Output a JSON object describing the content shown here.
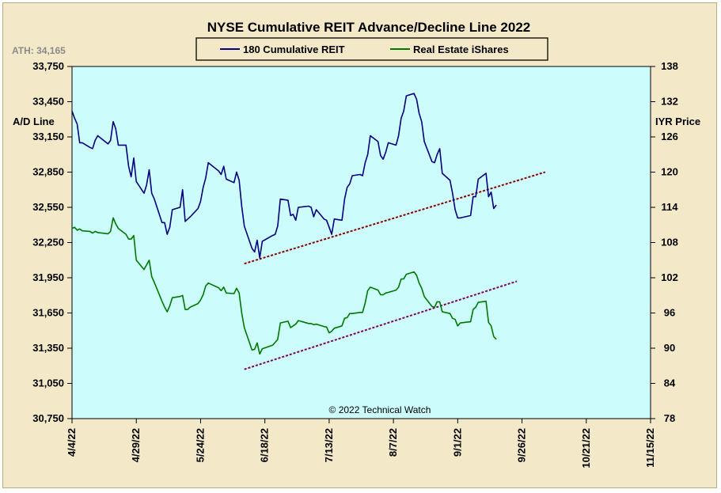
{
  "chart_data": {
    "type": "line",
    "title": "NYSE Cumulative  REIT Advance/Decline  Line 2022",
    "ath_label": "ATH: 34,165",
    "copyright": "© 2022 Technical  Watch",
    "left_axis": {
      "label": "A/D Line",
      "ticks": [
        "33,750",
        "33,450",
        "33,150",
        "32,850",
        "32,550",
        "32,250",
        "31,950",
        "31,650",
        "31,350",
        "31,050",
        "30,750"
      ],
      "range": [
        30750,
        33750
      ]
    },
    "right_axis": {
      "label": "IYR Price",
      "ticks": [
        "138",
        "132",
        "126",
        "120",
        "114",
        "108",
        "102",
        "96",
        "90",
        "84",
        "78"
      ],
      "range": [
        78,
        138
      ]
    },
    "x_axis": {
      "ticks": [
        "4/4/22",
        "4/29/22",
        "5/24/22",
        "6/18/22",
        "7/13/22",
        "8/7/22",
        "9/1/22",
        "9/26/22",
        "10/21/22",
        "11/15/22"
      ],
      "start": "4/4/22",
      "end": "11/15/22"
    },
    "legend": {
      "position": "top-center"
    },
    "colors": {
      "reit": "#000080",
      "iyr": "#007800",
      "trend_reit": "#8b0000",
      "trend_iyr": "#800060",
      "plot_bg": "#ccfcfc",
      "frame_bg": "#f3e9c9"
    },
    "series": [
      {
        "name": "180 Cumulative REIT",
        "axis": "left",
        "color": "#000080",
        "points": [
          [
            "4/4/22",
            33370
          ],
          [
            "4/5/22",
            33310
          ],
          [
            "4/6/22",
            33260
          ],
          [
            "4/7/22",
            33100
          ],
          [
            "4/8/22",
            33100
          ],
          [
            "4/11/22",
            33060
          ],
          [
            "4/12/22",
            33050
          ],
          [
            "4/13/22",
            33120
          ],
          [
            "4/14/22",
            33160
          ],
          [
            "4/18/22",
            33090
          ],
          [
            "4/19/22",
            33120
          ],
          [
            "4/20/22",
            33280
          ],
          [
            "4/21/22",
            33220
          ],
          [
            "4/22/22",
            33080
          ],
          [
            "4/25/22",
            33080
          ],
          [
            "4/26/22",
            32900
          ],
          [
            "4/27/22",
            32810
          ],
          [
            "4/28/22",
            32970
          ],
          [
            "4/29/22",
            32770
          ],
          [
            "5/2/22",
            32670
          ],
          [
            "5/3/22",
            32740
          ],
          [
            "5/4/22",
            32870
          ],
          [
            "5/5/22",
            32670
          ],
          [
            "5/6/22",
            32620
          ],
          [
            "5/9/22",
            32420
          ],
          [
            "5/10/22",
            32420
          ],
          [
            "5/11/22",
            32320
          ],
          [
            "5/12/22",
            32380
          ],
          [
            "5/13/22",
            32530
          ],
          [
            "5/16/22",
            32550
          ],
          [
            "5/17/22",
            32700
          ],
          [
            "5/18/22",
            32430
          ],
          [
            "5/19/22",
            32450
          ],
          [
            "5/20/22",
            32470
          ],
          [
            "5/23/22",
            32540
          ],
          [
            "5/24/22",
            32600
          ],
          [
            "5/25/22",
            32720
          ],
          [
            "5/26/22",
            32800
          ],
          [
            "5/27/22",
            32930
          ],
          [
            "5/31/22",
            32860
          ],
          [
            "6/1/22",
            32830
          ],
          [
            "6/2/22",
            32900
          ],
          [
            "6/3/22",
            32790
          ],
          [
            "6/6/22",
            32760
          ],
          [
            "6/7/22",
            32850
          ],
          [
            "6/8/22",
            32780
          ],
          [
            "6/9/22",
            32560
          ],
          [
            "6/10/22",
            32390
          ],
          [
            "6/13/22",
            32200
          ],
          [
            "6/14/22",
            32170
          ],
          [
            "6/15/22",
            32270
          ],
          [
            "6/16/22",
            32120
          ],
          [
            "6/17/22",
            32260
          ],
          [
            "6/21/22",
            32310
          ],
          [
            "6/22/22",
            32320
          ],
          [
            "6/23/22",
            32390
          ],
          [
            "6/24/22",
            32620
          ],
          [
            "6/27/22",
            32610
          ],
          [
            "6/28/22",
            32480
          ],
          [
            "6/29/22",
            32490
          ],
          [
            "6/30/22",
            32440
          ],
          [
            "7/1/22",
            32550
          ],
          [
            "7/5/22",
            32560
          ],
          [
            "7/6/22",
            32550
          ],
          [
            "7/7/22",
            32470
          ],
          [
            "7/8/22",
            32530
          ],
          [
            "7/11/22",
            32450
          ],
          [
            "7/12/22",
            32440
          ],
          [
            "7/13/22",
            32380
          ],
          [
            "7/14/22",
            32320
          ],
          [
            "7/15/22",
            32450
          ],
          [
            "7/18/22",
            32440
          ],
          [
            "7/19/22",
            32620
          ],
          [
            "7/20/22",
            32720
          ],
          [
            "7/21/22",
            32750
          ],
          [
            "7/22/22",
            32820
          ],
          [
            "7/25/22",
            32830
          ],
          [
            "7/26/22",
            32820
          ],
          [
            "7/27/22",
            32930
          ],
          [
            "7/28/22",
            33000
          ],
          [
            "7/29/22",
            33160
          ],
          [
            "8/1/22",
            33110
          ],
          [
            "8/2/22",
            32990
          ],
          [
            "8/3/22",
            32960
          ],
          [
            "8/4/22",
            33020
          ],
          [
            "8/5/22",
            33100
          ],
          [
            "8/8/22",
            33080
          ],
          [
            "8/9/22",
            33160
          ],
          [
            "8/10/22",
            33310
          ],
          [
            "8/11/22",
            33370
          ],
          [
            "8/12/22",
            33500
          ],
          [
            "8/15/22",
            33520
          ],
          [
            "8/16/22",
            33470
          ],
          [
            "8/17/22",
            33350
          ],
          [
            "8/18/22",
            33280
          ],
          [
            "8/19/22",
            33110
          ],
          [
            "8/22/22",
            32940
          ],
          [
            "8/23/22",
            32930
          ],
          [
            "8/24/22",
            33000
          ],
          [
            "8/25/22",
            33050
          ],
          [
            "8/26/22",
            32840
          ],
          [
            "8/29/22",
            32780
          ],
          [
            "8/30/22",
            32670
          ],
          [
            "8/31/22",
            32530
          ],
          [
            "9/1/22",
            32460
          ],
          [
            "9/2/22",
            32460
          ],
          [
            "9/6/22",
            32480
          ],
          [
            "9/7/22",
            32640
          ],
          [
            "9/8/22",
            32640
          ],
          [
            "9/9/22",
            32790
          ],
          [
            "9/12/22",
            32840
          ],
          [
            "9/13/22",
            32640
          ],
          [
            "9/14/22",
            32680
          ],
          [
            "9/15/22",
            32540
          ],
          [
            "9/16/22",
            32570
          ]
        ]
      },
      {
        "name": "Real Estate iShares",
        "axis": "right",
        "color": "#007800",
        "points": [
          [
            "4/4/22",
            110.4
          ],
          [
            "4/5/22",
            110.6
          ],
          [
            "4/6/22",
            110.1
          ],
          [
            "4/7/22",
            110.3
          ],
          [
            "4/8/22",
            110.0
          ],
          [
            "4/11/22",
            109.9
          ],
          [
            "4/12/22",
            109.6
          ],
          [
            "4/13/22",
            109.9
          ],
          [
            "4/14/22",
            109.7
          ],
          [
            "4/18/22",
            109.5
          ],
          [
            "4/19/22",
            109.9
          ],
          [
            "4/20/22",
            112.2
          ],
          [
            "4/21/22",
            111.2
          ],
          [
            "4/22/22",
            110.4
          ],
          [
            "4/25/22",
            109.4
          ],
          [
            "4/26/22",
            108.6
          ],
          [
            "4/27/22",
            108.6
          ],
          [
            "4/28/22",
            109.2
          ],
          [
            "4/29/22",
            105.0
          ],
          [
            "5/2/22",
            103.4
          ],
          [
            "5/3/22",
            104.2
          ],
          [
            "5/4/22",
            105.0
          ],
          [
            "5/5/22",
            102.2
          ],
          [
            "5/6/22",
            101.2
          ],
          [
            "5/9/22",
            98.0
          ],
          [
            "5/10/22",
            97.0
          ],
          [
            "5/11/22",
            96.2
          ],
          [
            "5/12/22",
            97.2
          ],
          [
            "5/13/22",
            98.6
          ],
          [
            "5/16/22",
            98.8
          ],
          [
            "5/17/22",
            99.0
          ],
          [
            "5/18/22",
            96.6
          ],
          [
            "5/19/22",
            96.6
          ],
          [
            "5/20/22",
            97.0
          ],
          [
            "5/23/22",
            97.6
          ],
          [
            "5/24/22",
            98.2
          ],
          [
            "5/25/22",
            99.1
          ],
          [
            "5/26/22",
            100.6
          ],
          [
            "5/27/22",
            101.1
          ],
          [
            "5/31/22",
            100.3
          ],
          [
            "6/1/22",
            99.8
          ],
          [
            "6/2/22",
            100.4
          ],
          [
            "6/3/22",
            99.4
          ],
          [
            "6/6/22",
            99.3
          ],
          [
            "6/7/22",
            100.2
          ],
          [
            "6/8/22",
            99.4
          ],
          [
            "6/9/22",
            96.0
          ],
          [
            "6/10/22",
            93.5
          ],
          [
            "6/13/22",
            89.7
          ],
          [
            "6/14/22",
            89.8
          ],
          [
            "6/15/22",
            90.9
          ],
          [
            "6/16/22",
            89.0
          ],
          [
            "6/17/22",
            89.9
          ],
          [
            "6/21/22",
            90.5
          ],
          [
            "6/22/22",
            91.0
          ],
          [
            "6/23/22",
            91.5
          ],
          [
            "6/24/22",
            94.3
          ],
          [
            "6/27/22",
            94.6
          ],
          [
            "6/28/22",
            93.5
          ],
          [
            "6/29/22",
            93.8
          ],
          [
            "6/30/22",
            94.1
          ],
          [
            "7/1/22",
            94.7
          ],
          [
            "7/5/22",
            94.2
          ],
          [
            "7/6/22",
            94.2
          ],
          [
            "7/7/22",
            94.0
          ],
          [
            "7/8/22",
            94.1
          ],
          [
            "7/11/22",
            93.7
          ],
          [
            "7/12/22",
            93.6
          ],
          [
            "7/13/22",
            92.6
          ],
          [
            "7/14/22",
            92.9
          ],
          [
            "7/15/22",
            93.4
          ],
          [
            "7/18/22",
            93.8
          ],
          [
            "7/19/22",
            95.1
          ],
          [
            "7/20/22",
            95.2
          ],
          [
            "7/21/22",
            95.9
          ],
          [
            "7/22/22",
            95.9
          ],
          [
            "7/25/22",
            96.1
          ],
          [
            "7/26/22",
            96.1
          ],
          [
            "7/27/22",
            97.7
          ],
          [
            "7/28/22",
            99.8
          ],
          [
            "7/29/22",
            100.4
          ],
          [
            "8/1/22",
            99.9
          ],
          [
            "8/2/22",
            99.1
          ],
          [
            "8/3/22",
            99.1
          ],
          [
            "8/4/22",
            99.4
          ],
          [
            "8/5/22",
            99.5
          ],
          [
            "8/8/22",
            99.9
          ],
          [
            "8/9/22",
            100.4
          ],
          [
            "8/10/22",
            101.8
          ],
          [
            "8/11/22",
            101.8
          ],
          [
            "8/12/22",
            102.6
          ],
          [
            "8/15/22",
            103.0
          ],
          [
            "8/16/22",
            102.4
          ],
          [
            "8/17/22",
            101.1
          ],
          [
            "8/18/22",
            100.2
          ],
          [
            "8/19/22",
            98.8
          ],
          [
            "8/22/22",
            97.1
          ],
          [
            "8/23/22",
            97.0
          ],
          [
            "8/24/22",
            97.9
          ],
          [
            "8/25/22",
            97.9
          ],
          [
            "8/26/22",
            96.2
          ],
          [
            "8/29/22",
            95.9
          ],
          [
            "8/30/22",
            95.1
          ],
          [
            "8/31/22",
            94.9
          ],
          [
            "9/1/22",
            93.8
          ],
          [
            "9/2/22",
            94.3
          ],
          [
            "9/6/22",
            94.5
          ],
          [
            "9/7/22",
            96.6
          ],
          [
            "9/8/22",
            97.0
          ],
          [
            "9/9/22",
            97.8
          ],
          [
            "9/12/22",
            98.0
          ],
          [
            "9/13/22",
            94.4
          ],
          [
            "9/14/22",
            93.8
          ],
          [
            "9/15/22",
            92.0
          ],
          [
            "9/16/22",
            91.5
          ]
        ]
      }
    ],
    "trendlines": [
      {
        "axis": "left",
        "color": "#8b0000",
        "from": [
          "6/10/22",
          32070
        ],
        "to": [
          "10/5/22",
          32850
        ]
      },
      {
        "axis": "left",
        "color": "#800060",
        "from": [
          "6/10/22",
          31170
        ],
        "to": [
          "9/24/22",
          31920
        ]
      }
    ]
  }
}
